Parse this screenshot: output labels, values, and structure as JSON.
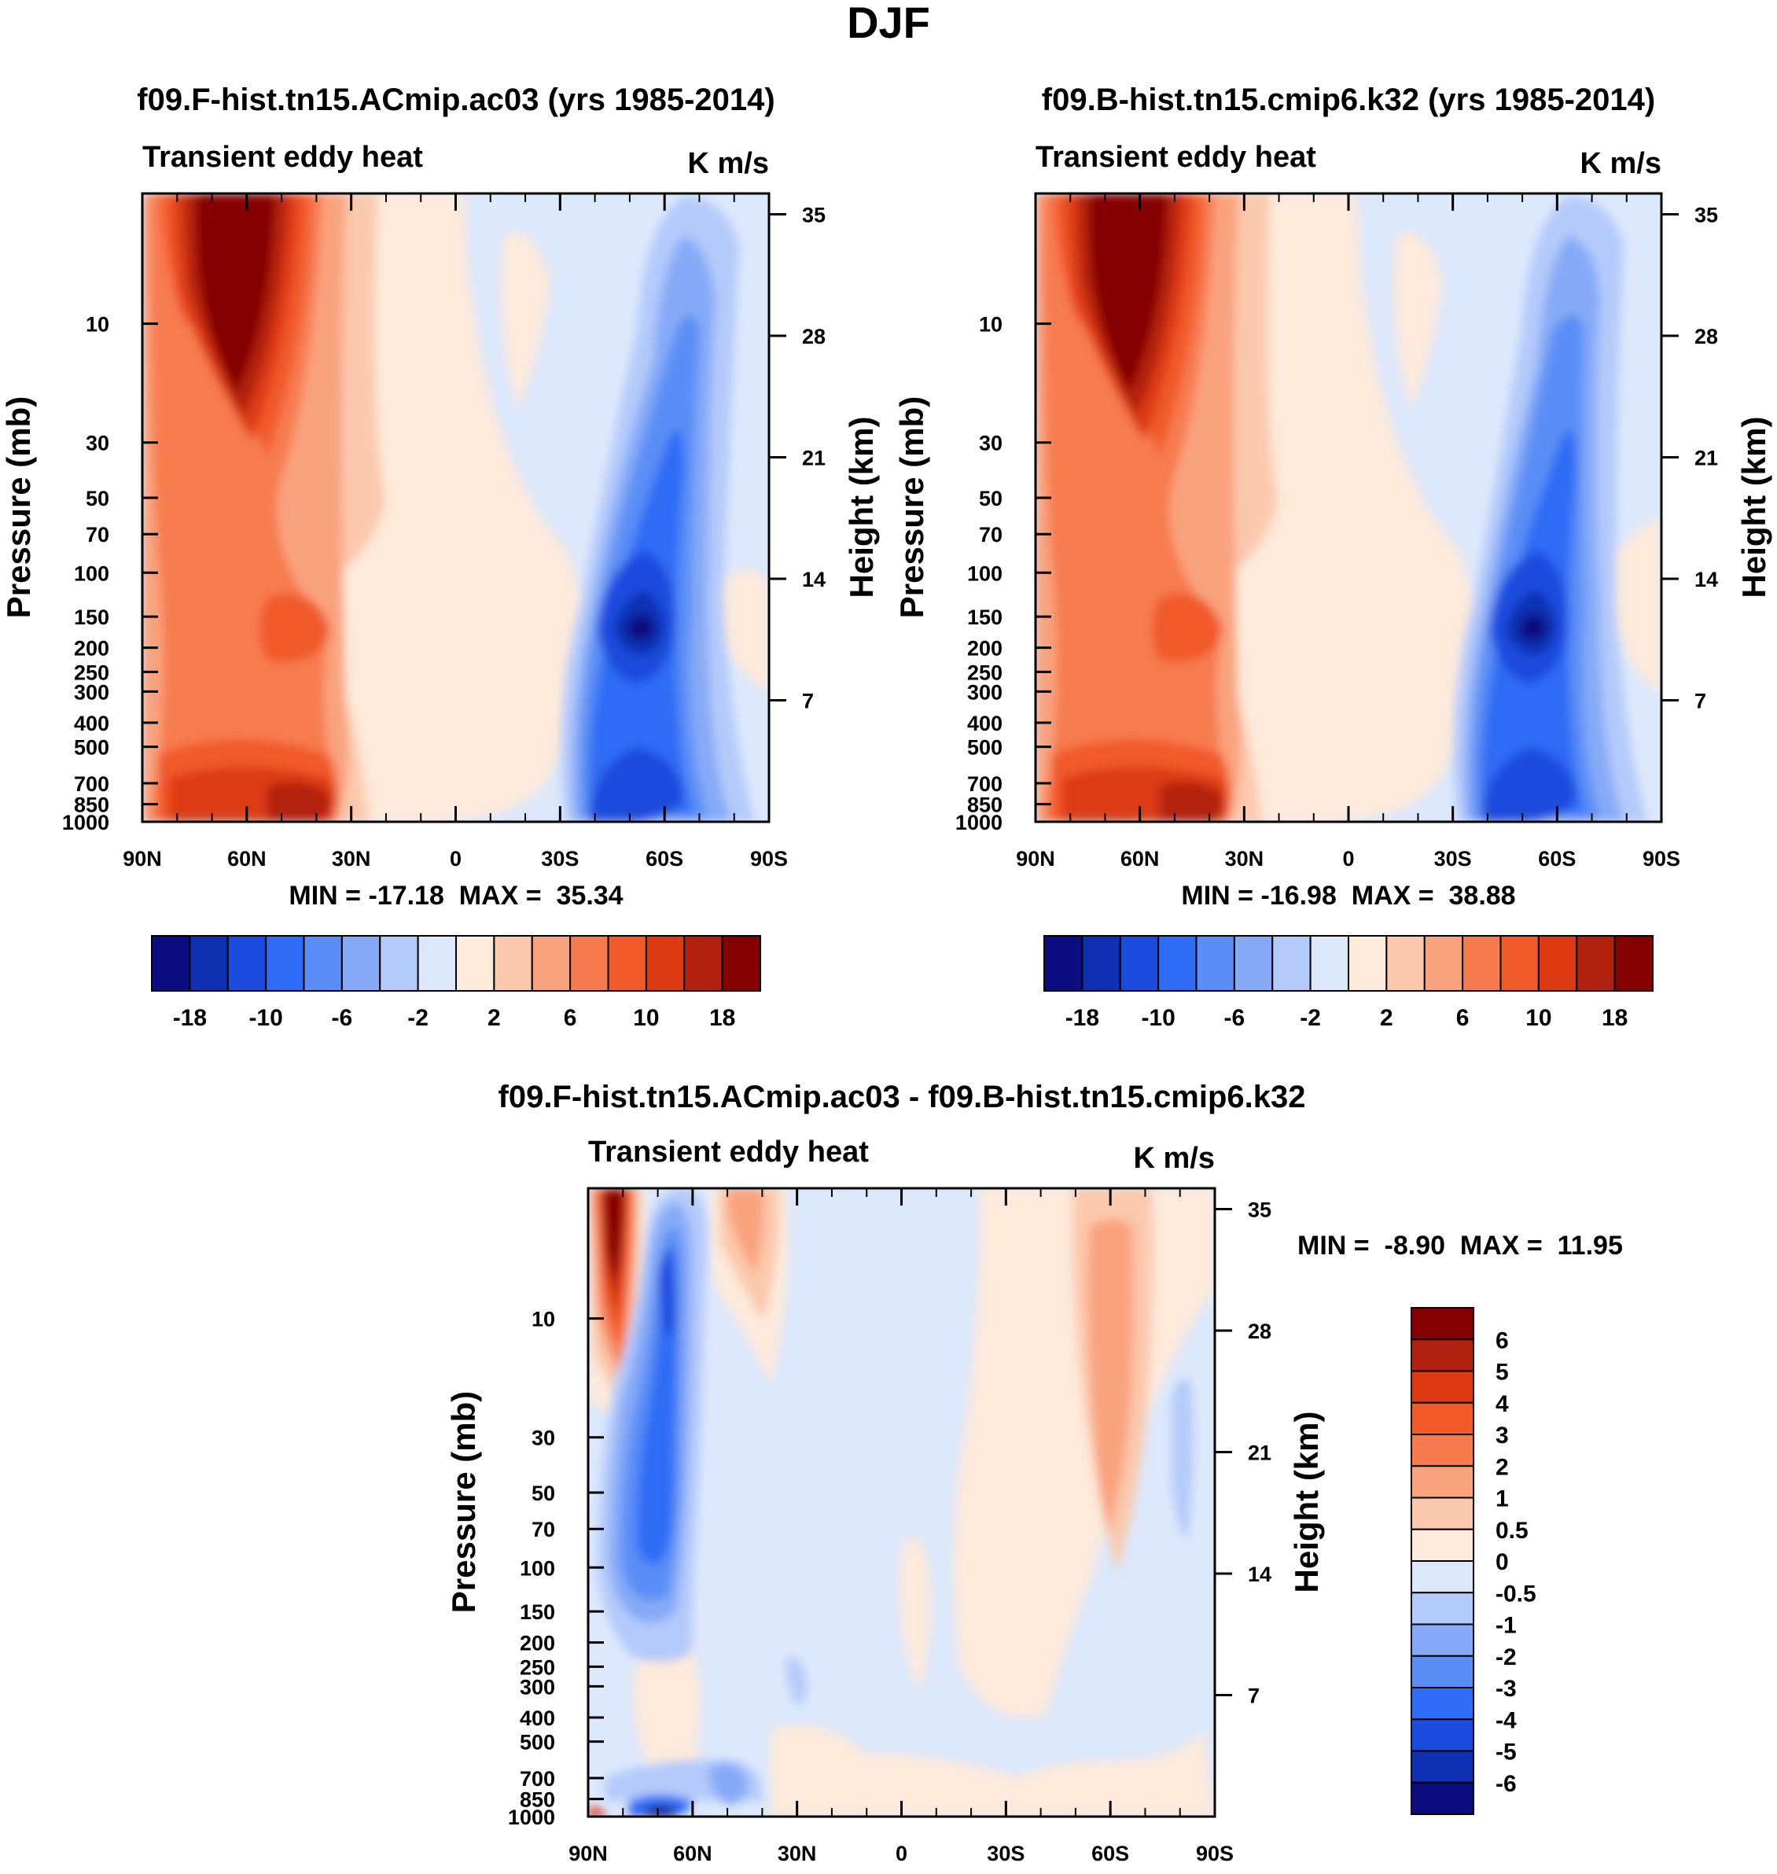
{
  "figure_title": "DJF",
  "palettes": {
    "abs_colors": [
      "#0b0c7f",
      "#1030b4",
      "#1b4cde",
      "#2f6cf5",
      "#5a8ef6",
      "#86aaf7",
      "#b4cafa",
      "#dce8fb",
      "#fdeadb",
      "#fbc9ad",
      "#f9a37e",
      "#f77b4f",
      "#f15a29",
      "#dd3a13",
      "#b2200f",
      "#850000"
    ],
    "abs_labels": [
      "-18",
      "-10",
      "-6",
      "-2",
      "2",
      "6",
      "10",
      "18"
    ],
    "diff_colors": [
      "#850000",
      "#b2200f",
      "#dd3a13",
      "#f15a29",
      "#f77b4f",
      "#f9a37e",
      "#fbc9ad",
      "#fdeadb",
      "#dce8fb",
      "#b4cafa",
      "#86aaf7",
      "#5a8ef6",
      "#2f6cf5",
      "#1b4cde",
      "#1030b4",
      "#0b0c7f"
    ],
    "diff_labels": [
      "6",
      "5",
      "4",
      "3",
      "2",
      "1",
      "0.5",
      "0",
      "-0.5",
      "-1",
      "-2",
      "-3",
      "-4",
      "-5",
      "-6"
    ]
  },
  "chart_data": [
    {
      "type": "contour",
      "title": "f09.F-hist.tn15.ACmip.ac03 (yrs 1985-2014)",
      "left_string": "Transient eddy heat",
      "right_string": "K m/s",
      "xlabel": "",
      "ylabel": "Pressure (mb)",
      "y2label": "Height (km)",
      "x_ticks": [
        "90N",
        "60N",
        "30N",
        "0",
        "30S",
        "60S",
        "90S"
      ],
      "y_ticks": [
        "10",
        "30",
        "50",
        "70",
        "100",
        "150",
        "200",
        "250",
        "300",
        "400",
        "500",
        "700",
        "850",
        "1000"
      ],
      "y2_ticks": [
        "35",
        "28",
        "21",
        "14",
        "7"
      ],
      "stats": "MIN = -17.18  MAX =  35.34",
      "min": -17.18,
      "max": 35.34
    },
    {
      "type": "contour",
      "title": "f09.B-hist.tn15.cmip6.k32 (yrs 1985-2014)",
      "left_string": "Transient eddy heat",
      "right_string": "K m/s",
      "xlabel": "",
      "ylabel": "Pressure (mb)",
      "y2label": "Height (km)",
      "x_ticks": [
        "90N",
        "60N",
        "30N",
        "0",
        "30S",
        "60S",
        "90S"
      ],
      "y_ticks": [
        "10",
        "30",
        "50",
        "70",
        "100",
        "150",
        "200",
        "250",
        "300",
        "400",
        "500",
        "700",
        "850",
        "1000"
      ],
      "y2_ticks": [
        "35",
        "28",
        "21",
        "14",
        "7"
      ],
      "stats": "MIN = -16.98  MAX =  38.88",
      "min": -16.98,
      "max": 38.88
    },
    {
      "type": "contour",
      "title": "f09.F-hist.tn15.ACmip.ac03 - f09.B-hist.tn15.cmip6.k32",
      "left_string": "Transient eddy heat",
      "right_string": "K m/s",
      "xlabel": "",
      "ylabel": "Pressure (mb)",
      "y2label": "Height (km)",
      "x_ticks": [
        "90N",
        "60N",
        "30N",
        "0",
        "30S",
        "60S",
        "90S"
      ],
      "y_ticks": [
        "10",
        "30",
        "50",
        "70",
        "100",
        "150",
        "200",
        "250",
        "300",
        "400",
        "500",
        "700",
        "850",
        "1000"
      ],
      "y2_ticks": [
        "35",
        "28",
        "21",
        "14",
        "7"
      ],
      "stats": "MIN =  -8.90  MAX =  11.95",
      "min": -8.9,
      "max": 11.95
    }
  ]
}
